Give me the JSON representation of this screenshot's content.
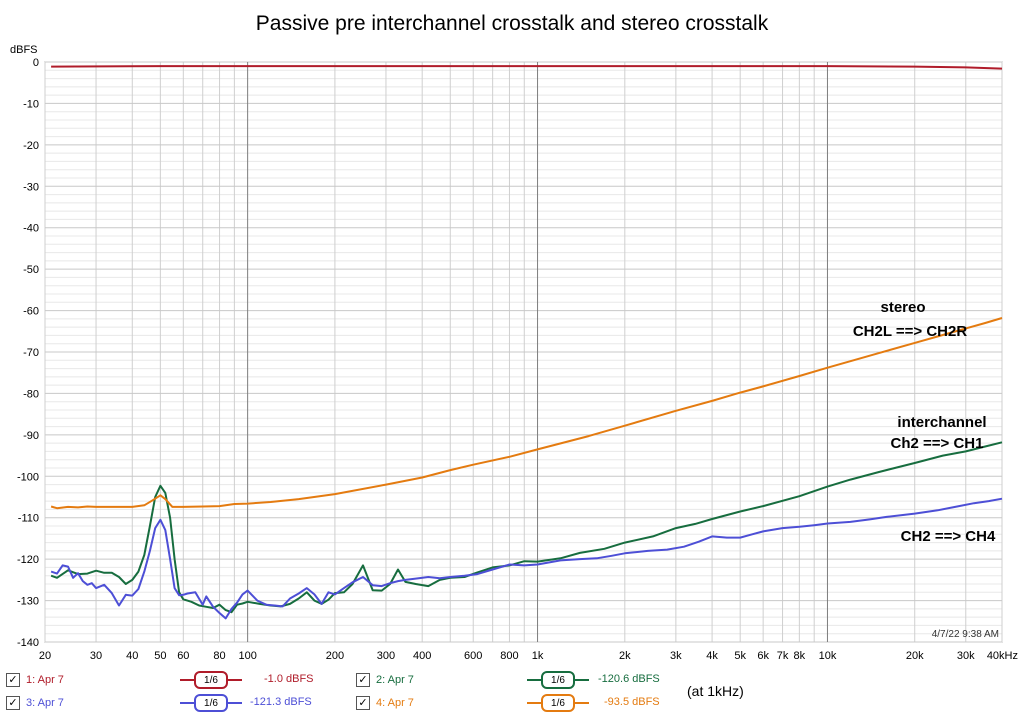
{
  "chart_data": {
    "type": "line",
    "title": "Passive pre interchannel crosstalk and stereo crosstalk",
    "ylabel": "dBFS",
    "xlabel": "",
    "xscale": "log",
    "xlim": [
      20,
      40000
    ],
    "ylim": [
      -140,
      0
    ],
    "grid": true,
    "y_ticks": [
      0,
      -10,
      -20,
      -30,
      -40,
      -50,
      -60,
      -70,
      -80,
      -90,
      -100,
      -110,
      -120,
      -130,
      -140
    ],
    "x_ticks": [
      {
        "v": 20,
        "label": "20"
      },
      {
        "v": 30,
        "label": "30"
      },
      {
        "v": 40,
        "label": "40"
      },
      {
        "v": 50,
        "label": "50"
      },
      {
        "v": 60,
        "label": "60"
      },
      {
        "v": 80,
        "label": "80"
      },
      {
        "v": 100,
        "label": "100"
      },
      {
        "v": 200,
        "label": "200"
      },
      {
        "v": 300,
        "label": "300"
      },
      {
        "v": 400,
        "label": "400"
      },
      {
        "v": 600,
        "label": "600"
      },
      {
        "v": 800,
        "label": "800"
      },
      {
        "v": 1000,
        "label": "1k"
      },
      {
        "v": 2000,
        "label": "2k"
      },
      {
        "v": 3000,
        "label": "3k"
      },
      {
        "v": 4000,
        "label": "4k"
      },
      {
        "v": 5000,
        "label": "5k"
      },
      {
        "v": 6000,
        "label": "6k"
      },
      {
        "v": 7000,
        "label": "7k"
      },
      {
        "v": 8000,
        "label": "8k"
      },
      {
        "v": 10000,
        "label": "10k"
      },
      {
        "v": 20000,
        "label": "20k"
      },
      {
        "v": 30000,
        "label": "30k"
      },
      {
        "v": 40000,
        "label": "40kHz"
      }
    ],
    "series": [
      {
        "name": "1: Apr 7",
        "color": "#b01c2a",
        "points": [
          [
            21,
            -1.1
          ],
          [
            50,
            -1.0
          ],
          [
            100,
            -1.0
          ],
          [
            500,
            -1.0
          ],
          [
            1000,
            -1.0
          ],
          [
            5000,
            -1.0
          ],
          [
            10000,
            -1.0
          ],
          [
            20000,
            -1.1
          ],
          [
            30000,
            -1.3
          ],
          [
            40000,
            -1.6
          ]
        ]
      },
      {
        "name": "2: Apr 7",
        "color": "#176d3f",
        "points": [
          [
            21,
            -124
          ],
          [
            22,
            -124.5
          ],
          [
            24,
            -122.7
          ],
          [
            26,
            -123.6
          ],
          [
            28,
            -123.5
          ],
          [
            30,
            -122.8
          ],
          [
            32,
            -123.3
          ],
          [
            34,
            -123.3
          ],
          [
            36,
            -124.3
          ],
          [
            38,
            -126
          ],
          [
            40,
            -125
          ],
          [
            42,
            -123
          ],
          [
            44,
            -119
          ],
          [
            46,
            -112
          ],
          [
            48,
            -105
          ],
          [
            50,
            -102.3
          ],
          [
            52,
            -104
          ],
          [
            54,
            -110
          ],
          [
            56,
            -120
          ],
          [
            58,
            -128
          ],
          [
            60,
            -129.7
          ],
          [
            64,
            -130.3
          ],
          [
            68,
            -131.2
          ],
          [
            72,
            -131.5
          ],
          [
            76,
            -131.8
          ],
          [
            80,
            -131
          ],
          [
            84,
            -132.3
          ],
          [
            88,
            -132.8
          ],
          [
            92,
            -131
          ],
          [
            96,
            -130.7
          ],
          [
            100,
            -130.3
          ],
          [
            110,
            -130.8
          ],
          [
            120,
            -131.2
          ],
          [
            130,
            -131.4
          ],
          [
            140,
            -130.8
          ],
          [
            150,
            -129.5
          ],
          [
            160,
            -128
          ],
          [
            170,
            -130
          ],
          [
            180,
            -130.8
          ],
          [
            190,
            -129.8
          ],
          [
            200,
            -128.2
          ],
          [
            215,
            -128
          ],
          [
            230,
            -126
          ],
          [
            250,
            -121.5
          ],
          [
            270,
            -127.5
          ],
          [
            290,
            -127.6
          ],
          [
            310,
            -126
          ],
          [
            330,
            -122.5
          ],
          [
            350,
            -125.5
          ],
          [
            380,
            -126
          ],
          [
            420,
            -126.5
          ],
          [
            460,
            -125
          ],
          [
            500,
            -124.5
          ],
          [
            560,
            -124.3
          ],
          [
            620,
            -123.2
          ],
          [
            700,
            -122
          ],
          [
            800,
            -121.5
          ],
          [
            900,
            -120.5
          ],
          [
            1000,
            -120.6
          ],
          [
            1200,
            -119.8
          ],
          [
            1400,
            -118.5
          ],
          [
            1700,
            -117.5
          ],
          [
            2000,
            -116
          ],
          [
            2500,
            -114.5
          ],
          [
            3000,
            -112.5
          ],
          [
            3500,
            -111.5
          ],
          [
            4000,
            -110.3
          ],
          [
            5000,
            -108.5
          ],
          [
            6000,
            -107.2
          ],
          [
            8000,
            -104.8
          ],
          [
            10000,
            -102.5
          ],
          [
            12000,
            -100.8
          ],
          [
            15000,
            -99
          ],
          [
            20000,
            -96.8
          ],
          [
            25000,
            -95
          ],
          [
            30000,
            -94
          ],
          [
            35000,
            -92.8
          ],
          [
            40000,
            -91.8
          ]
        ]
      },
      {
        "name": "3: Apr 7",
        "color": "#4d4fd6",
        "points": [
          [
            21,
            -123
          ],
          [
            22,
            -123.5
          ],
          [
            23,
            -121.5
          ],
          [
            24,
            -121.8
          ],
          [
            25,
            -124.5
          ],
          [
            26,
            -123.4
          ],
          [
            27,
            -125.3
          ],
          [
            28,
            -126.2
          ],
          [
            29,
            -125.8
          ],
          [
            30,
            -127
          ],
          [
            32,
            -126.2
          ],
          [
            34,
            -128.2
          ],
          [
            36,
            -131.2
          ],
          [
            38,
            -128.6
          ],
          [
            40,
            -128.8
          ],
          [
            42,
            -127.2
          ],
          [
            44,
            -123
          ],
          [
            46,
            -118
          ],
          [
            48,
            -112.5
          ],
          [
            50,
            -110.5
          ],
          [
            52,
            -113
          ],
          [
            54,
            -120
          ],
          [
            56,
            -127
          ],
          [
            58,
            -128.7
          ],
          [
            60,
            -128.6
          ],
          [
            62,
            -128.3
          ],
          [
            66,
            -128
          ],
          [
            70,
            -131
          ],
          [
            72,
            -129
          ],
          [
            76,
            -131.5
          ],
          [
            80,
            -133
          ],
          [
            84,
            -134.3
          ],
          [
            88,
            -132
          ],
          [
            92,
            -130.5
          ],
          [
            96,
            -128.5
          ],
          [
            100,
            -127.6
          ],
          [
            108,
            -130
          ],
          [
            116,
            -131
          ],
          [
            124,
            -131.2
          ],
          [
            132,
            -131.4
          ],
          [
            140,
            -129.5
          ],
          [
            150,
            -128.3
          ],
          [
            160,
            -127
          ],
          [
            170,
            -128.5
          ],
          [
            180,
            -130.8
          ],
          [
            190,
            -128
          ],
          [
            200,
            -128.5
          ],
          [
            215,
            -127
          ],
          [
            230,
            -125.6
          ],
          [
            250,
            -124.3
          ],
          [
            270,
            -126.3
          ],
          [
            290,
            -126.5
          ],
          [
            310,
            -125.8
          ],
          [
            330,
            -125.3
          ],
          [
            350,
            -125
          ],
          [
            380,
            -124.7
          ],
          [
            420,
            -124.3
          ],
          [
            460,
            -124.6
          ],
          [
            500,
            -124.3
          ],
          [
            560,
            -124
          ],
          [
            620,
            -123.6
          ],
          [
            700,
            -122.5
          ],
          [
            800,
            -121.3
          ],
          [
            900,
            -121.5
          ],
          [
            1000,
            -121.3
          ],
          [
            1200,
            -120.3
          ],
          [
            1400,
            -120
          ],
          [
            1600,
            -119.8
          ],
          [
            1800,
            -119.2
          ],
          [
            2000,
            -118.6
          ],
          [
            2400,
            -118
          ],
          [
            2800,
            -117.7
          ],
          [
            3200,
            -117
          ],
          [
            3600,
            -115.8
          ],
          [
            4000,
            -114.5
          ],
          [
            4500,
            -114.8
          ],
          [
            5000,
            -114.8
          ],
          [
            5500,
            -114
          ],
          [
            6000,
            -113.3
          ],
          [
            7000,
            -112.5
          ],
          [
            8000,
            -112.2
          ],
          [
            9000,
            -111.8
          ],
          [
            10000,
            -111.4
          ],
          [
            12000,
            -111
          ],
          [
            14000,
            -110.4
          ],
          [
            16000,
            -109.8
          ],
          [
            20000,
            -109
          ],
          [
            24000,
            -108.2
          ],
          [
            28000,
            -107.3
          ],
          [
            32000,
            -106.5
          ],
          [
            36000,
            -106
          ],
          [
            40000,
            -105.4
          ]
        ]
      },
      {
        "name": "4: Apr 7",
        "color": "#e47b10",
        "points": [
          [
            21,
            -107.3
          ],
          [
            22,
            -107.7
          ],
          [
            24,
            -107.4
          ],
          [
            26,
            -107.5
          ],
          [
            28,
            -107.3
          ],
          [
            30,
            -107.4
          ],
          [
            35,
            -107.4
          ],
          [
            40,
            -107.4
          ],
          [
            44,
            -107
          ],
          [
            47,
            -105.8
          ],
          [
            50,
            -104.6
          ],
          [
            52,
            -105.5
          ],
          [
            55,
            -107.4
          ],
          [
            60,
            -107.4
          ],
          [
            70,
            -107.3
          ],
          [
            80,
            -107.2
          ],
          [
            90,
            -106.7
          ],
          [
            100,
            -106.6
          ],
          [
            120,
            -106.2
          ],
          [
            150,
            -105.5
          ],
          [
            200,
            -104.3
          ],
          [
            300,
            -102
          ],
          [
            400,
            -100.3
          ],
          [
            500,
            -98.5
          ],
          [
            600,
            -97.2
          ],
          [
            800,
            -95.3
          ],
          [
            1000,
            -93.5
          ],
          [
            1500,
            -90.3
          ],
          [
            2000,
            -87.8
          ],
          [
            3000,
            -84.2
          ],
          [
            4000,
            -81.8
          ],
          [
            5000,
            -79.8
          ],
          [
            6000,
            -78.3
          ],
          [
            8000,
            -75.8
          ],
          [
            10000,
            -73.8
          ],
          [
            15000,
            -70.3
          ],
          [
            20000,
            -67.8
          ],
          [
            25000,
            -65.9
          ],
          [
            30000,
            -64.3
          ],
          [
            35000,
            -63
          ],
          [
            40000,
            -61.8
          ]
        ]
      }
    ],
    "annotations": [
      {
        "text": "stereo",
        "bold": true
      },
      {
        "text": "CH2L ==> CH2R",
        "bold": true
      },
      {
        "text": "interchannel",
        "bold": true
      },
      {
        "text": "Ch2 ==> CH1",
        "bold": true
      },
      {
        "text": "CH2 ==> CH4",
        "bold": true
      }
    ],
    "timestamp": "4/7/22 9:38 AM"
  },
  "legend": [
    {
      "check": "✓",
      "label": "1: Apr 7",
      "smoothing": "1/6",
      "value": "-1.0 dBFS",
      "color": "#b01c2a"
    },
    {
      "check": "✓",
      "label": "2: Apr 7",
      "smoothing": "1/6",
      "value": "-120.6 dBFS",
      "color": "#176d3f"
    },
    {
      "check": "✓",
      "label": "3: Apr 7",
      "smoothing": "1/6",
      "value": "-121.3 dBFS",
      "color": "#4d4fd6"
    },
    {
      "check": "✓",
      "label": "4: Apr 7",
      "smoothing": "1/6",
      "value": "-93.5 dBFS",
      "color": "#e47b10"
    }
  ],
  "note": "(at 1kHz)"
}
